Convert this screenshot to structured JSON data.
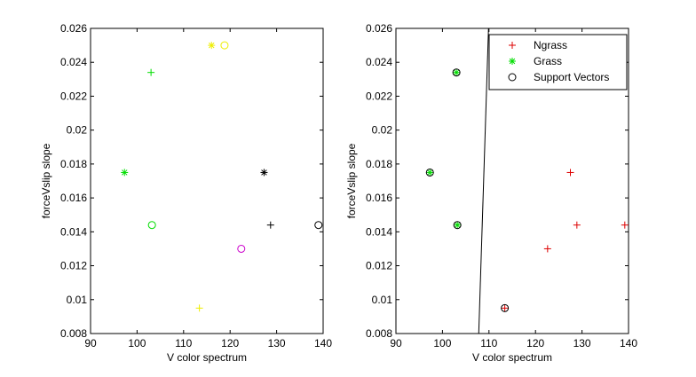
{
  "chart_data": [
    {
      "type": "scatter",
      "title": "",
      "xlabel": "V color spectrum",
      "ylabel": "forceVslip slope",
      "xlim": [
        90,
        140
      ],
      "ylim": [
        0.008,
        0.026
      ],
      "xticks": [
        90,
        100,
        110,
        120,
        130,
        140
      ],
      "yticks": [
        0.008,
        0.01,
        0.012,
        0.014,
        0.016,
        0.018,
        0.02,
        0.022,
        0.024,
        0.026
      ],
      "xtick_labels": [
        "90",
        "100",
        "110",
        "120",
        "130",
        "140"
      ],
      "ytick_labels": [
        "0.008",
        "0.01",
        "0.012",
        "0.014",
        "0.016",
        "0.018",
        "0.02",
        "0.022",
        "0.024",
        "0.026"
      ],
      "grid": false,
      "points": [
        {
          "x": 103,
          "y": 0.0234,
          "marker": "plus",
          "color": "#00dd00"
        },
        {
          "x": 97.3,
          "y": 0.0175,
          "marker": "star",
          "color": "#00dd00"
        },
        {
          "x": 103.2,
          "y": 0.0144,
          "marker": "circle",
          "color": "#00dd00"
        },
        {
          "x": 116,
          "y": 0.025,
          "marker": "star",
          "color": "#eeee00"
        },
        {
          "x": 118.8,
          "y": 0.025,
          "marker": "circle",
          "color": "#eeee00"
        },
        {
          "x": 113.4,
          "y": 0.0095,
          "marker": "plus",
          "color": "#eeee00"
        },
        {
          "x": 127.3,
          "y": 0.0175,
          "marker": "star",
          "color": "#000000"
        },
        {
          "x": 128.7,
          "y": 0.0144,
          "marker": "plus",
          "color": "#000000"
        },
        {
          "x": 139,
          "y": 0.0144,
          "marker": "circle",
          "color": "#000000"
        },
        {
          "x": 122.4,
          "y": 0.013,
          "marker": "circle",
          "color": "#cc00cc"
        }
      ]
    },
    {
      "type": "scatter",
      "title": "",
      "xlabel": "V color spectrum",
      "ylabel": "forceVslip slope",
      "xlim": [
        90,
        140
      ],
      "ylim": [
        0.008,
        0.026
      ],
      "xticks": [
        90,
        100,
        110,
        120,
        130,
        140
      ],
      "yticks": [
        0.008,
        0.01,
        0.012,
        0.014,
        0.016,
        0.018,
        0.02,
        0.022,
        0.024,
        0.026
      ],
      "xtick_labels": [
        "90",
        "100",
        "110",
        "120",
        "130",
        "140"
      ],
      "ytick_labels": [
        "0.008",
        "0.01",
        "0.012",
        "0.014",
        "0.016",
        "0.018",
        "0.02",
        "0.022",
        "0.024",
        "0.026"
      ],
      "grid": false,
      "legend_position": "top-right",
      "series": [
        {
          "name": "Ngrass",
          "marker": "plus",
          "color": "#dd0000",
          "points": [
            {
              "x": 127.5,
              "y": 0.0175
            },
            {
              "x": 128.9,
              "y": 0.0144
            },
            {
              "x": 139.2,
              "y": 0.0144
            },
            {
              "x": 122.6,
              "y": 0.013
            },
            {
              "x": 113.4,
              "y": 0.0095
            }
          ]
        },
        {
          "name": "Grass",
          "marker": "star",
          "color": "#00dd00",
          "points": [
            {
              "x": 103,
              "y": 0.0234
            },
            {
              "x": 97.3,
              "y": 0.0175
            },
            {
              "x": 103.2,
              "y": 0.0144
            }
          ]
        },
        {
          "name": "Support Vectors",
          "marker": "circle",
          "color": "#000000",
          "points": [
            {
              "x": 103,
              "y": 0.0234
            },
            {
              "x": 97.3,
              "y": 0.0175
            },
            {
              "x": 103.2,
              "y": 0.0144
            },
            {
              "x": 113.4,
              "y": 0.0095
            }
          ]
        }
      ],
      "decision_boundary": [
        {
          "x": 107.8,
          "y": 0.008
        },
        {
          "x": 109.9,
          "y": 0.026
        }
      ]
    }
  ]
}
